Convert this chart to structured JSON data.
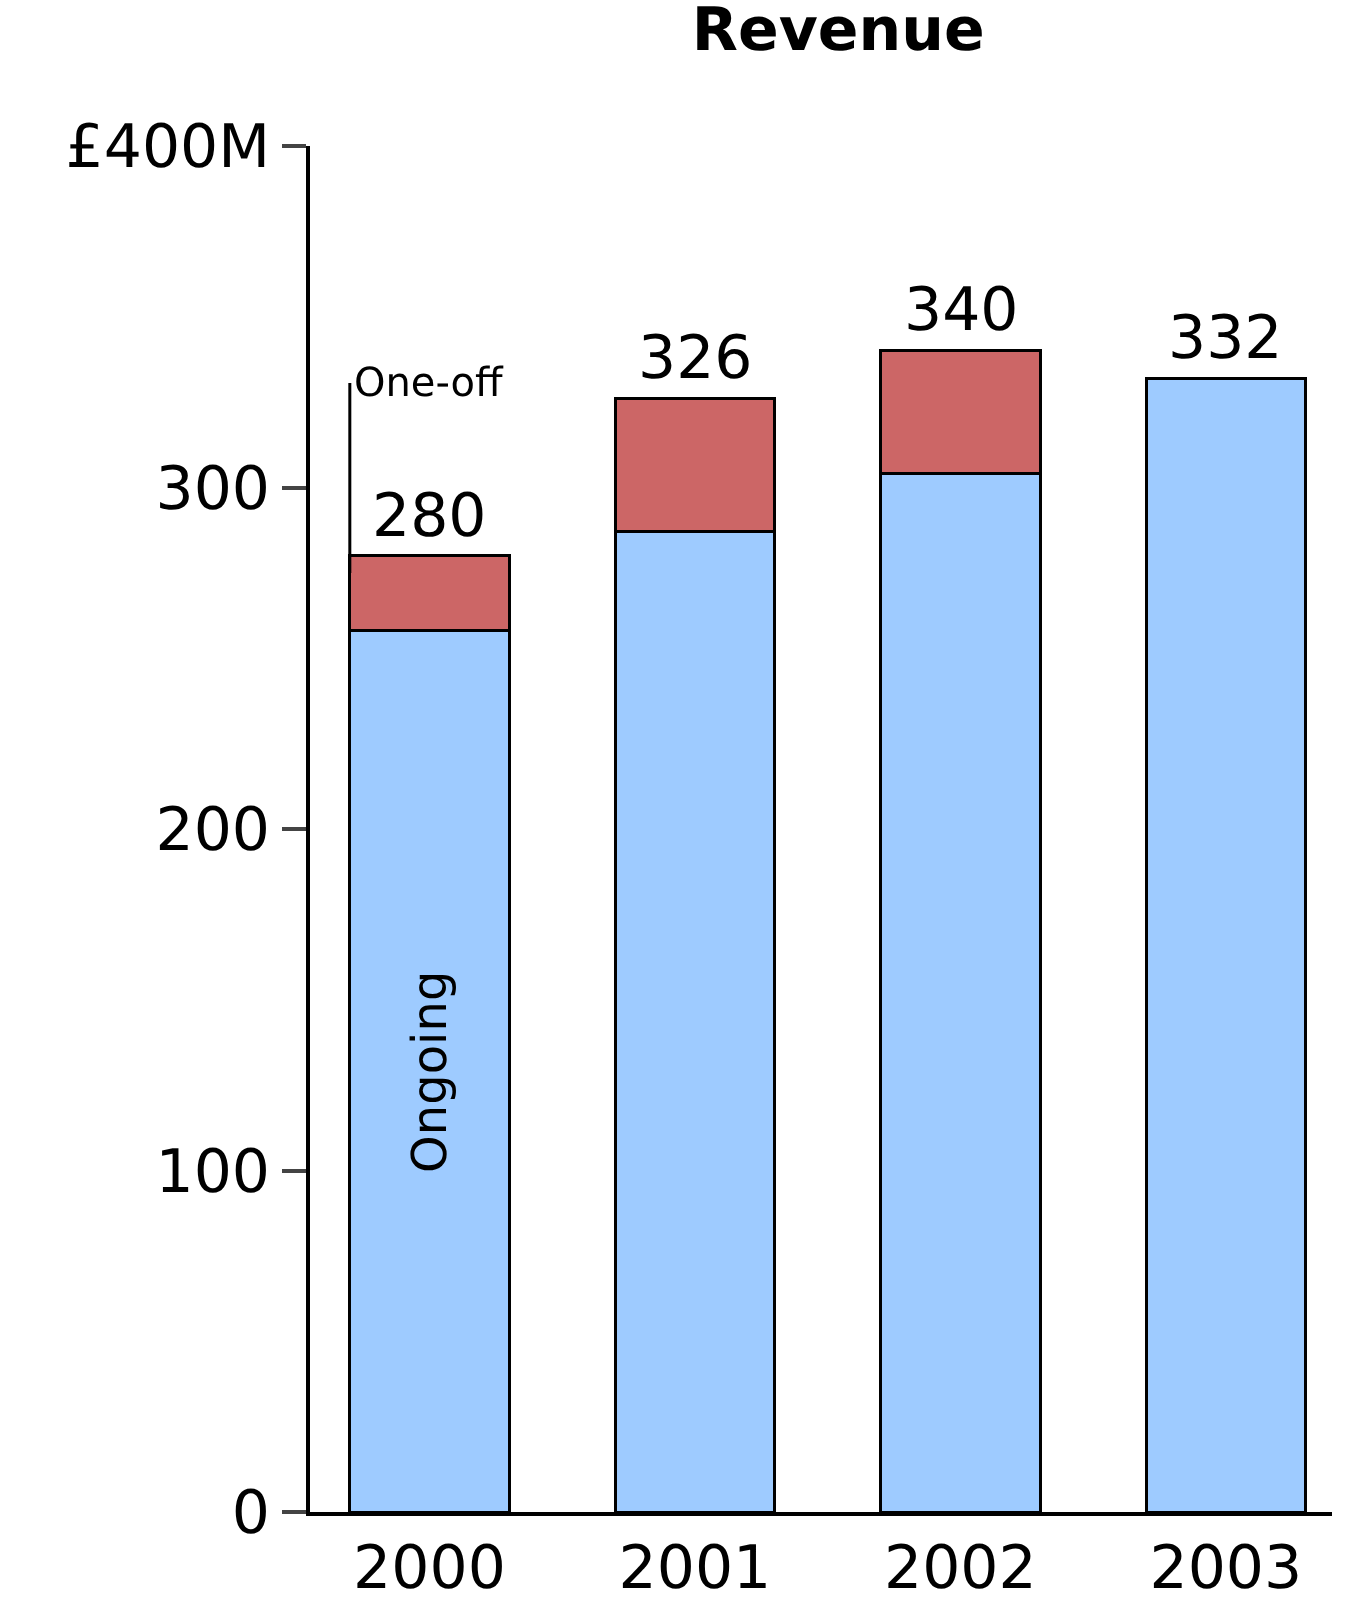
{
  "chart_data": {
    "type": "bar",
    "title": "Revenue",
    "categories": [
      "2000",
      "2001",
      "2002",
      "2003"
    ],
    "stacked": true,
    "series": [
      {
        "name": "Ongoing",
        "color": "#9ecbff",
        "values": [
          258,
          287,
          304,
          332
        ]
      },
      {
        "name": "One-off",
        "color": "#cc6666",
        "values": [
          22,
          39,
          36,
          null
        ]
      }
    ],
    "totals": [
      "280",
      "326",
      "340",
      "332"
    ],
    "ylim": [
      0,
      400
    ],
    "yticks": [
      0,
      100,
      200,
      300,
      {
        "value": 400,
        "label": "£400M"
      }
    ],
    "legend": false
  }
}
